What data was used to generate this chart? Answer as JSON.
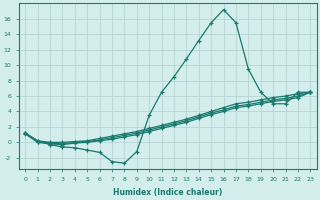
{
  "xlabel": "Humidex (Indice chaleur)",
  "bg_color": "#d4eeee",
  "line_color": "#1a7a6e",
  "grid_color": "#b8d4d4",
  "xlim": [
    -0.5,
    23.5
  ],
  "ylim": [
    -3.5,
    18
  ],
  "xticks": [
    0,
    1,
    2,
    3,
    4,
    5,
    6,
    7,
    8,
    9,
    10,
    11,
    12,
    13,
    14,
    15,
    16,
    17,
    18,
    19,
    20,
    21,
    22,
    23
  ],
  "yticks": [
    -2,
    0,
    2,
    4,
    6,
    8,
    10,
    12,
    14,
    16
  ],
  "curve1_x": [
    0,
    1,
    2,
    3,
    4,
    5,
    6,
    7,
    8,
    9,
    10,
    11,
    12,
    13,
    14,
    15,
    16,
    17,
    18,
    19,
    20,
    21,
    22,
    23
  ],
  "curve1_y": [
    1.2,
    0.2,
    -0.3,
    -0.6,
    -0.7,
    -1.0,
    -1.3,
    -2.5,
    -2.7,
    -1.2,
    3.5,
    6.5,
    8.5,
    10.8,
    13.2,
    15.5,
    17.2,
    15.5,
    9.5,
    6.5,
    5.0,
    5.0,
    6.5,
    6.5
  ],
  "curve2_x": [
    0,
    1,
    2,
    3,
    4,
    5,
    6,
    7,
    8,
    9,
    10,
    11,
    12,
    13,
    14,
    15,
    16,
    17,
    18,
    19,
    20,
    21,
    22,
    23
  ],
  "curve2_y": [
    1.2,
    0.2,
    0.0,
    0.0,
    0.1,
    0.2,
    0.5,
    0.8,
    1.1,
    1.4,
    1.8,
    2.2,
    2.6,
    3.0,
    3.5,
    4.0,
    4.5,
    5.0,
    5.2,
    5.5,
    5.8,
    6.0,
    6.3,
    6.5
  ],
  "curve3_x": [
    0,
    1,
    2,
    3,
    4,
    5,
    6,
    7,
    8,
    9,
    10,
    11,
    12,
    13,
    14,
    15,
    16,
    17,
    18,
    19,
    20,
    21,
    22,
    23
  ],
  "curve3_y": [
    1.2,
    0.1,
    -0.1,
    -0.2,
    0.0,
    0.1,
    0.3,
    0.6,
    0.9,
    1.2,
    1.6,
    2.0,
    2.4,
    2.8,
    3.3,
    3.8,
    4.2,
    4.7,
    4.9,
    5.2,
    5.5,
    5.7,
    6.0,
    6.5
  ],
  "curve4_x": [
    0,
    1,
    2,
    3,
    4,
    5,
    6,
    7,
    8,
    9,
    10,
    11,
    12,
    13,
    14,
    15,
    16,
    17,
    18,
    19,
    20,
    21,
    22,
    23
  ],
  "curve4_y": [
    1.1,
    0.0,
    -0.2,
    -0.3,
    -0.1,
    0.0,
    0.2,
    0.4,
    0.7,
    1.0,
    1.4,
    1.8,
    2.2,
    2.6,
    3.1,
    3.6,
    4.0,
    4.5,
    4.7,
    5.0,
    5.3,
    5.5,
    5.8,
    6.5
  ]
}
